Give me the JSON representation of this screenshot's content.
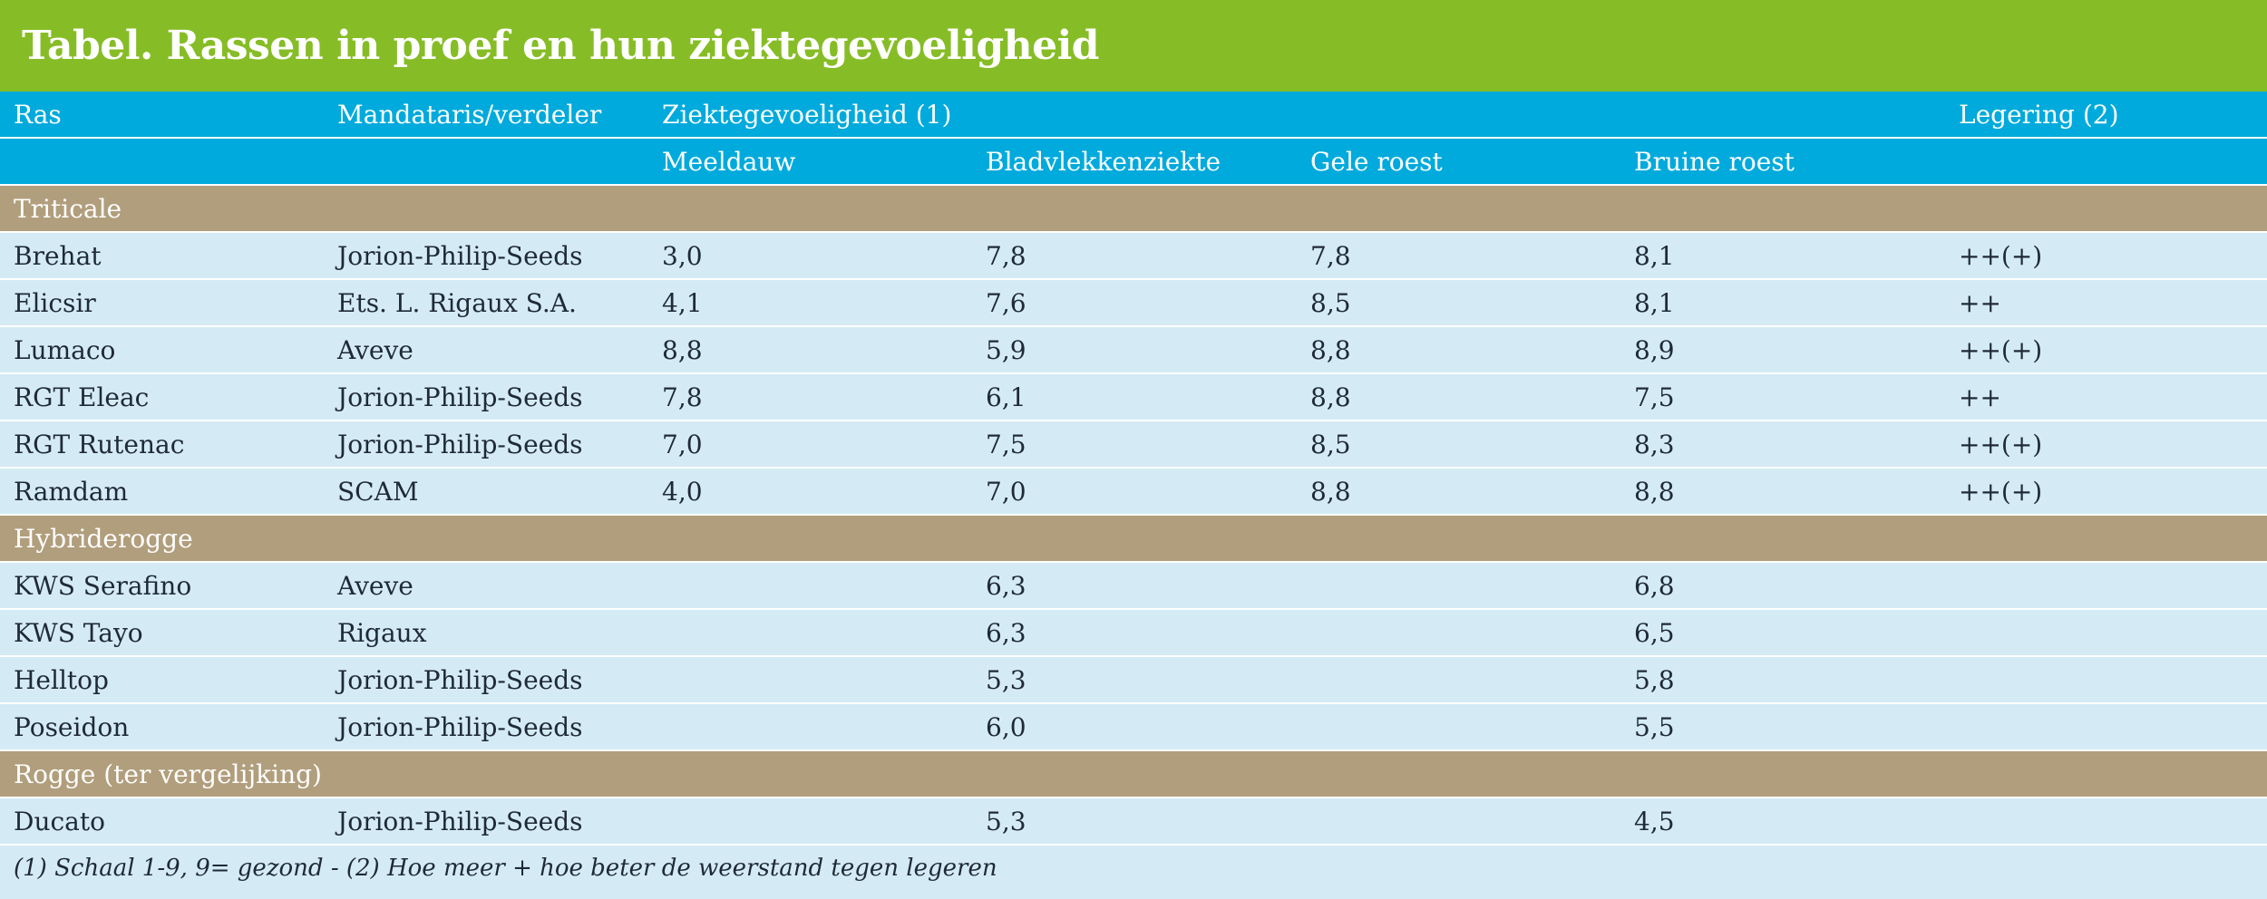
{
  "title": "Tabel.  Rassen in proef en hun ziektegevoeligheid",
  "header": {
    "ras": "Ras",
    "mandataris": "Mandataris/verdeler",
    "ziekte": "Ziektegevoeligheid (1)",
    "legering": "Legering (2)",
    "meeldauw": "Meeldauw",
    "bladvlekken": "Bladvlekkenziekte",
    "gele_roest": "Gele roest",
    "bruine_roest": "Bruine roest"
  },
  "groups": [
    {
      "name": "Triticale",
      "rows": [
        {
          "ras": "Brehat",
          "mandataris": "Jorion-Philip-Seeds",
          "meeldauw": "3,0",
          "bladvlekken": "7,8",
          "gele_roest": "7,8",
          "bruine_roest": "8,1",
          "legering": "++(+)"
        },
        {
          "ras": "Elicsir",
          "mandataris": "Ets. L. Rigaux S.A.",
          "meeldauw": "4,1",
          "bladvlekken": "7,6",
          "gele_roest": "8,5",
          "bruine_roest": "8,1",
          "legering": "++"
        },
        {
          "ras": "Lumaco",
          "mandataris": "Aveve",
          "meeldauw": "8,8",
          "bladvlekken": "5,9",
          "gele_roest": "8,8",
          "bruine_roest": "8,9",
          "legering": "++(+)"
        },
        {
          "ras": "RGT Eleac",
          "mandataris": "Jorion-Philip-Seeds",
          "meeldauw": "7,8",
          "bladvlekken": "6,1",
          "gele_roest": "8,8",
          "bruine_roest": "7,5",
          "legering": "++"
        },
        {
          "ras": "RGT Rutenac",
          "mandataris": "Jorion-Philip-Seeds",
          "meeldauw": "7,0",
          "bladvlekken": "7,5",
          "gele_roest": "8,5",
          "bruine_roest": "8,3",
          "legering": "++(+)"
        },
        {
          "ras": "Ramdam",
          "mandataris": "SCAM",
          "meeldauw": "4,0",
          "bladvlekken": "7,0",
          "gele_roest": "8,8",
          "bruine_roest": "8,8",
          "legering": "++(+)"
        }
      ]
    },
    {
      "name": "Hybriderogge",
      "rows": [
        {
          "ras": "KWS Serafino",
          "mandataris": "Aveve",
          "meeldauw": "",
          "bladvlekken": "6,3",
          "gele_roest": "",
          "bruine_roest": "6,8",
          "legering": ""
        },
        {
          "ras": "KWS Tayo",
          "mandataris": "Rigaux",
          "meeldauw": "",
          "bladvlekken": "6,3",
          "gele_roest": "",
          "bruine_roest": "6,5",
          "legering": ""
        },
        {
          "ras": "Helltop",
          "mandataris": "Jorion-Philip-Seeds",
          "meeldauw": "",
          "bladvlekken": "5,3",
          "gele_roest": "",
          "bruine_roest": "5,8",
          "legering": ""
        },
        {
          "ras": "Poseidon",
          "mandataris": "Jorion-Philip-Seeds",
          "meeldauw": "",
          "bladvlekken": "6,0",
          "gele_roest": "",
          "bruine_roest": "5,5",
          "legering": ""
        }
      ]
    },
    {
      "name": "Rogge (ter vergelijking)",
      "rows": [
        {
          "ras": "Ducato",
          "mandataris": "Jorion-Philip-Seeds",
          "meeldauw": "",
          "bladvlekken": "5,3",
          "gele_roest": "",
          "bruine_roest": "4,5",
          "legering": ""
        }
      ]
    }
  ],
  "footnote": "(1) Schaal 1-9, 9= gezond - (2) Hoe meer + hoe beter de weerstand tegen legeren",
  "colors": {
    "title_bg": "#86bd26",
    "header_bg": "#00aadc",
    "group_bg": "#b19e7c",
    "row_bg": "#d4ebf6"
  }
}
